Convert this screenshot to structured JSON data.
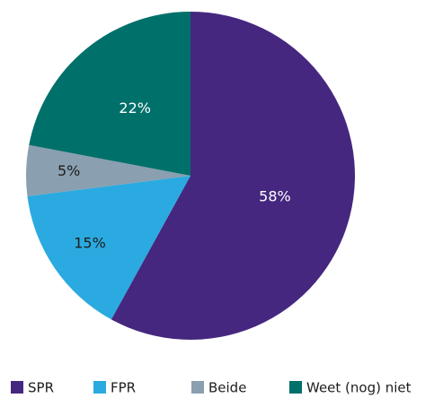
{
  "chart_data": {
    "type": "pie",
    "categories": [
      "SPR",
      "FPR",
      "Beide",
      "Weet (nog) niet"
    ],
    "values": [
      58,
      15,
      5,
      22
    ],
    "value_labels": [
      "58%",
      "15%",
      "5%",
      "22%"
    ],
    "colors": [
      "#45277f",
      "#2aaae0",
      "#8a9fb0",
      "#00706a"
    ],
    "label_colors": [
      "#ffffff",
      "#1d1d1b",
      "#1d1d1b",
      "#ffffff"
    ],
    "start_angle": 0,
    "direction": "clockwise",
    "legend": "bottom"
  }
}
